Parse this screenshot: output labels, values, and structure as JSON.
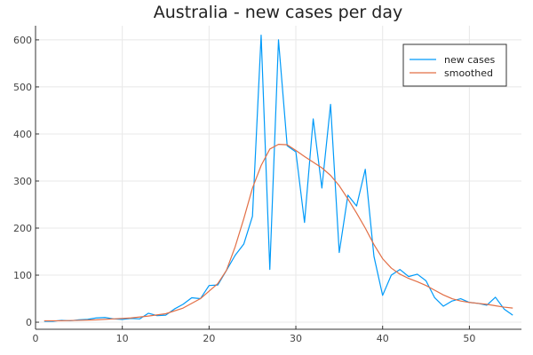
{
  "chart_data": {
    "type": "line",
    "title": "Australia - new cases per day",
    "xlabel": "",
    "ylabel": "",
    "xlim": [
      0,
      56
    ],
    "ylim": [
      -15,
      630
    ],
    "xticks": [
      0,
      10,
      20,
      30,
      40,
      50
    ],
    "yticks": [
      0,
      100,
      200,
      300,
      400,
      500,
      600
    ],
    "grid": true,
    "legend_position": "top-right",
    "series": [
      {
        "name": "new cases",
        "color": "#009af9",
        "points": [
          [
            1,
            2
          ],
          [
            2,
            2
          ],
          [
            3,
            4
          ],
          [
            4,
            3
          ],
          [
            5,
            5
          ],
          [
            6,
            6
          ],
          [
            7,
            9
          ],
          [
            8,
            10
          ],
          [
            9,
            7
          ],
          [
            10,
            6
          ],
          [
            11,
            8
          ],
          [
            12,
            7
          ],
          [
            13,
            19
          ],
          [
            14,
            14
          ],
          [
            15,
            15
          ],
          [
            16,
            28
          ],
          [
            17,
            38
          ],
          [
            18,
            52
          ],
          [
            19,
            50
          ],
          [
            20,
            78
          ],
          [
            21,
            79
          ],
          [
            22,
            110
          ],
          [
            23,
            142
          ],
          [
            24,
            166
          ],
          [
            25,
            225
          ],
          [
            26,
            610
          ],
          [
            27,
            112
          ],
          [
            28,
            600
          ],
          [
            29,
            375
          ],
          [
            30,
            362
          ],
          [
            31,
            212
          ],
          [
            32,
            432
          ],
          [
            33,
            285
          ],
          [
            34,
            463
          ],
          [
            35,
            148
          ],
          [
            36,
            270
          ],
          [
            37,
            247
          ],
          [
            38,
            325
          ],
          [
            39,
            140
          ],
          [
            40,
            57
          ],
          [
            41,
            100
          ],
          [
            42,
            112
          ],
          [
            43,
            97
          ],
          [
            44,
            102
          ],
          [
            45,
            88
          ],
          [
            46,
            52
          ],
          [
            47,
            34
          ],
          [
            48,
            45
          ],
          [
            49,
            50
          ],
          [
            50,
            42
          ],
          [
            51,
            40
          ],
          [
            52,
            36
          ],
          [
            53,
            53
          ],
          [
            54,
            28
          ],
          [
            55,
            15
          ]
        ]
      },
      {
        "name": "smoothed",
        "color": "#e26f46",
        "points": [
          [
            1,
            3
          ],
          [
            3,
            3
          ],
          [
            5,
            4
          ],
          [
            7,
            5
          ],
          [
            9,
            7
          ],
          [
            11,
            9
          ],
          [
            13,
            13
          ],
          [
            15,
            18
          ],
          [
            17,
            30
          ],
          [
            19,
            50
          ],
          [
            21,
            82
          ],
          [
            22,
            110
          ],
          [
            23,
            160
          ],
          [
            24,
            220
          ],
          [
            25,
            285
          ],
          [
            26,
            333
          ],
          [
            27,
            368
          ],
          [
            28,
            378
          ],
          [
            29,
            377
          ],
          [
            30,
            365
          ],
          [
            31,
            352
          ],
          [
            32,
            340
          ],
          [
            33,
            328
          ],
          [
            34,
            312
          ],
          [
            35,
            290
          ],
          [
            36,
            262
          ],
          [
            37,
            232
          ],
          [
            38,
            200
          ],
          [
            39,
            165
          ],
          [
            40,
            135
          ],
          [
            41,
            115
          ],
          [
            42,
            102
          ],
          [
            43,
            93
          ],
          [
            44,
            86
          ],
          [
            45,
            78
          ],
          [
            46,
            68
          ],
          [
            47,
            58
          ],
          [
            48,
            50
          ],
          [
            49,
            45
          ],
          [
            50,
            42
          ],
          [
            51,
            40
          ],
          [
            52,
            38
          ],
          [
            53,
            35
          ],
          [
            54,
            32
          ],
          [
            55,
            30
          ]
        ]
      }
    ]
  }
}
